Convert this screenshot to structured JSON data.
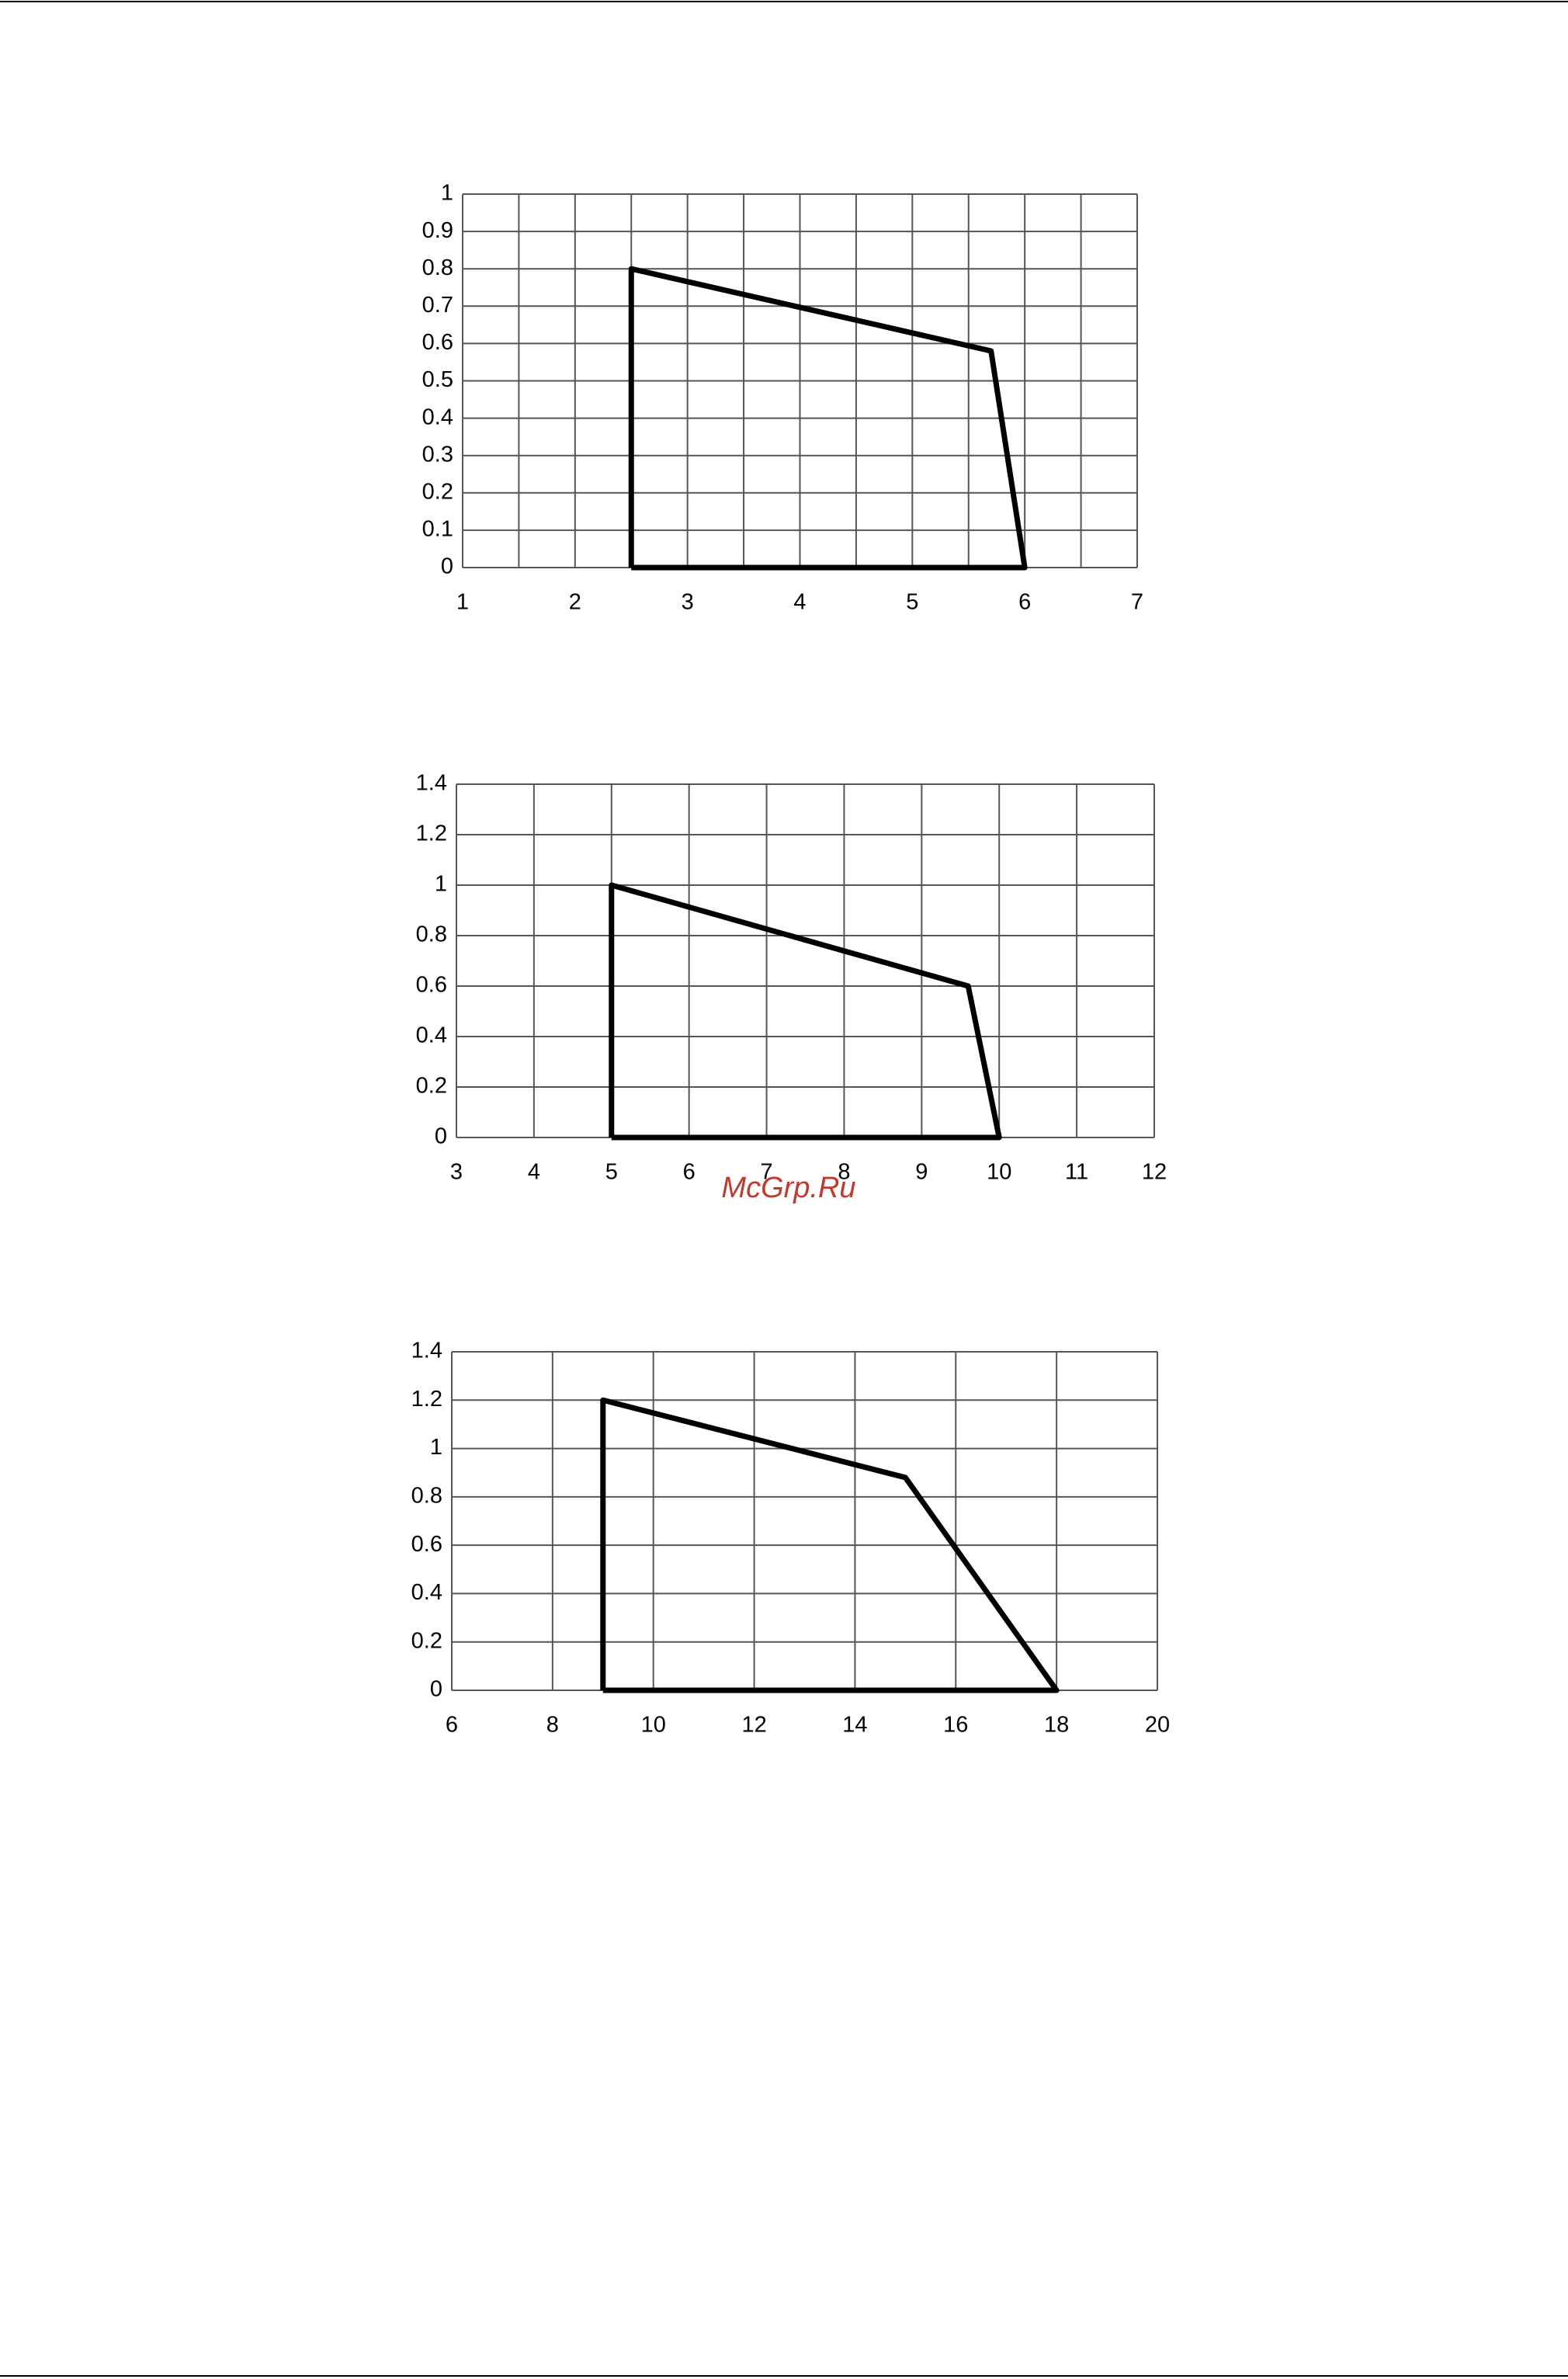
{
  "chart_data": [
    {
      "type": "line",
      "x": [
        2.5,
        2.5,
        5.7,
        6,
        2.5
      ],
      "series": [
        {
          "color": "#000000",
          "values": [
            0,
            0.8,
            0.58,
            0,
            0
          ]
        }
      ],
      "xlim": [
        1,
        7
      ],
      "xticks": [
        1,
        2,
        3,
        4,
        5,
        6,
        7
      ],
      "ylim": [
        0,
        1
      ],
      "yticks": [
        0,
        0.1,
        0.2,
        0.3,
        0.4,
        0.5,
        0.6,
        0.7,
        0.8,
        0.9,
        1
      ],
      "grid": true,
      "minor_x_grid": true
    },
    {
      "type": "line",
      "x": [
        5,
        5,
        9.6,
        10,
        5
      ],
      "series": [
        {
          "color": "#000000",
          "values": [
            0,
            1,
            0.6,
            0,
            0
          ]
        }
      ],
      "xlim": [
        3,
        12
      ],
      "xticks": [
        3,
        4,
        5,
        6,
        7,
        8,
        9,
        10,
        11,
        12
      ],
      "ylim": [
        0,
        1.4
      ],
      "yticks": [
        0,
        0.2,
        0.4,
        0.6,
        0.8,
        1,
        1.2,
        1.4
      ],
      "grid": true,
      "minor_x_grid": false
    },
    {
      "type": "line",
      "x": [
        9,
        9,
        15,
        18,
        9
      ],
      "series": [
        {
          "color": "#000000",
          "values": [
            0,
            1.2,
            0.88,
            0,
            0
          ]
        }
      ],
      "xlim": [
        6,
        20
      ],
      "xticks": [
        6,
        8,
        10,
        12,
        14,
        16,
        18,
        20
      ],
      "ylim": [
        0,
        1.4
      ],
      "yticks": [
        0,
        0.2,
        0.4,
        0.6,
        0.8,
        1,
        1.2,
        1.4
      ],
      "grid": true,
      "minor_x_grid": false
    }
  ],
  "watermark": "McGrp.Ru"
}
